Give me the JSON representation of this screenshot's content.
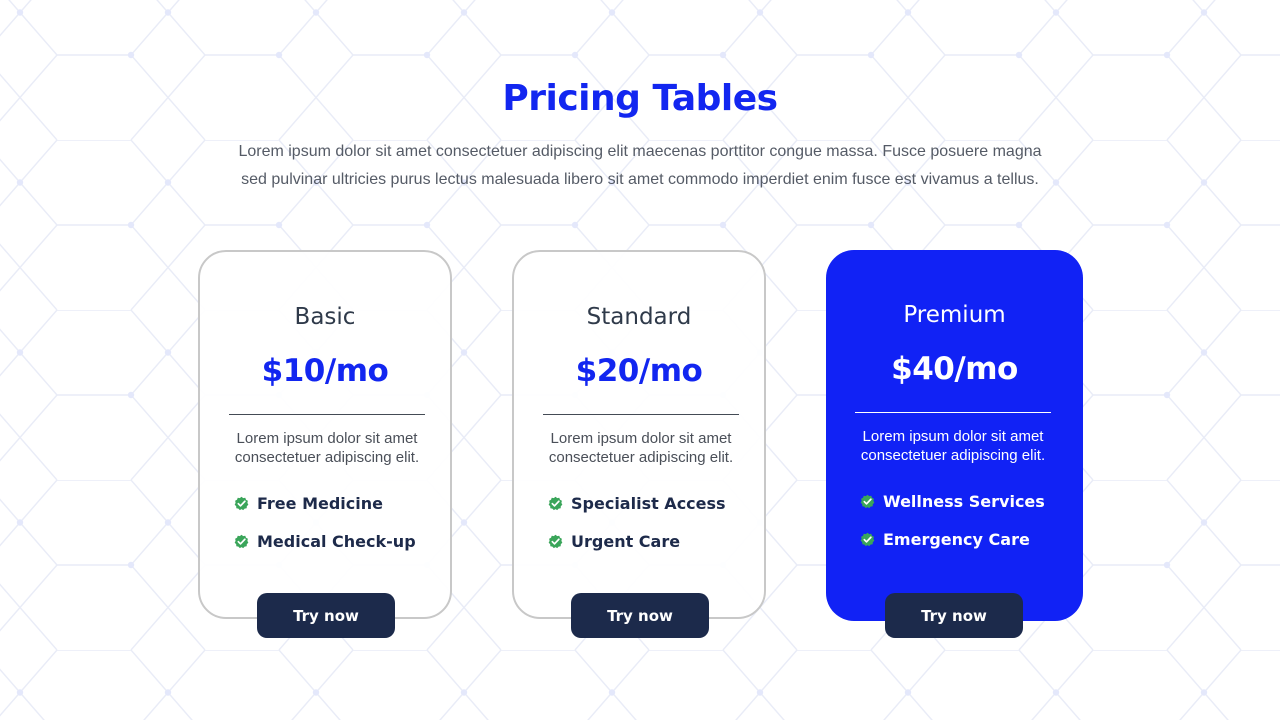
{
  "header": {
    "title": "Pricing Tables",
    "description": "Lorem ipsum dolor sit amet consectetuer adipiscing elit maecenas porttitor congue massa. Fusce posuere magna sed pulvinar ultricies purus lectus malesuada libero sit amet commodo imperdiet enim fusce est vivamus a tellus."
  },
  "plans": [
    {
      "name": "Basic",
      "price": "$10/mo",
      "description": "Lorem ipsum dolor sit amet consectetuer adipiscing elit.",
      "features": [
        "Free Medicine",
        "Medical Check-up"
      ],
      "button_label": "Try now",
      "highlighted": false
    },
    {
      "name": "Standard",
      "price": "$20/mo",
      "description": "Lorem ipsum dolor sit amet consectetuer adipiscing elit.",
      "features": [
        "Specialist Access",
        "Urgent Care"
      ],
      "button_label": "Try now",
      "highlighted": false
    },
    {
      "name": "Premium",
      "price": "$40/mo",
      "description": "Lorem ipsum dolor sit amet consectetuer adipiscing elit.",
      "features": [
        "Wellness Services",
        "Emergency Care"
      ],
      "button_label": "Try now",
      "highlighted": true
    }
  ],
  "icons": {
    "feature_icon": "check-badge-icon"
  },
  "colors": {
    "accent": "#1226f0",
    "highlight_card": "#1122f5",
    "button": "#1c2a4b",
    "check_green": "#3aa55a"
  }
}
